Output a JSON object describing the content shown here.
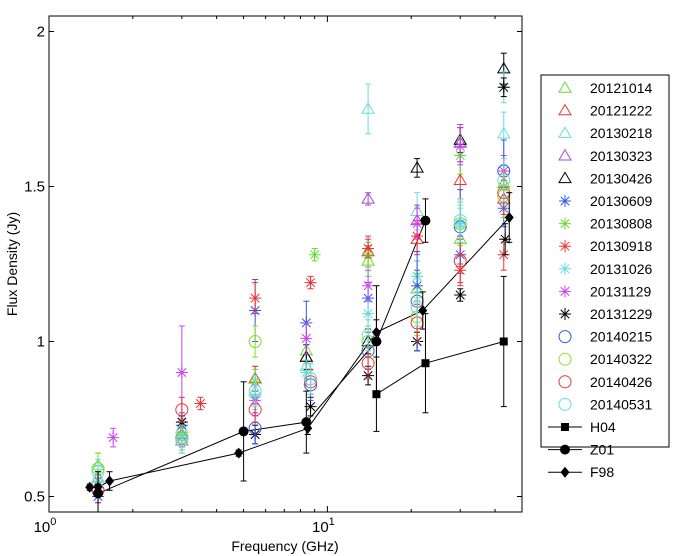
{
  "chart_data": {
    "type": "scatter",
    "xlabel": "Frequency (GHz)",
    "ylabel": "Flux Density (Jy)",
    "xscale": "log",
    "xlim": [
      1,
      50
    ],
    "ylim": [
      0.45,
      2.05
    ],
    "x_ticks": [
      {
        "value": 1,
        "base": "10",
        "exp": "0"
      },
      {
        "value": 10,
        "base": "10",
        "exp": "1"
      }
    ],
    "y_ticks": [
      {
        "value": 0.5,
        "label": "0.5"
      },
      {
        "value": 1,
        "label": "1"
      },
      {
        "value": 1.5,
        "label": "1.5"
      },
      {
        "value": 2,
        "label": "2"
      }
    ],
    "legend_position": "outside-right",
    "series": [
      {
        "name": "20121014",
        "marker": "triangle",
        "color": "#66dd33",
        "connected": false,
        "points": [
          [
            1.5,
            0.6,
            0.04
          ],
          [
            3.0,
            0.72,
            0.04
          ],
          [
            5.5,
            0.88,
            0.04
          ],
          [
            8.4,
            0.97,
            0.04
          ],
          [
            14.0,
            1.26,
            0.05
          ],
          [
            21.0,
            1.17,
            0.05
          ],
          [
            30.0,
            1.33,
            0.05
          ],
          [
            43.0,
            1.51,
            0.06
          ]
        ]
      },
      {
        "name": "20121222",
        "marker": "triangle",
        "color": "#ee3333",
        "connected": false,
        "points": [
          [
            1.5,
            0.56,
            0.04
          ],
          [
            3.0,
            0.7,
            0.04
          ],
          [
            5.5,
            0.88,
            0.04
          ],
          [
            8.4,
            0.95,
            0.04
          ],
          [
            14.0,
            1.29,
            0.05
          ],
          [
            21.0,
            1.33,
            0.05
          ],
          [
            30.0,
            1.52,
            0.06
          ],
          [
            43.0,
            1.46,
            0.06
          ]
        ]
      },
      {
        "name": "20130218",
        "marker": "triangle",
        "color": "#66dddd",
        "connected": false,
        "points": [
          [
            1.5,
            0.56,
            0.04
          ],
          [
            3.0,
            0.72,
            0.04
          ],
          [
            5.5,
            0.84,
            0.04
          ],
          [
            8.4,
            0.92,
            0.04
          ],
          [
            14.0,
            1.75,
            0.08
          ],
          [
            21.0,
            1.42,
            0.06
          ],
          [
            30.0,
            1.38,
            0.06
          ],
          [
            43.0,
            1.67,
            0.07
          ]
        ]
      },
      {
        "name": "20130323",
        "marker": "triangle",
        "color": "#aa44dd",
        "connected": false,
        "points": [
          [
            3.0,
            0.68,
            0.04
          ],
          [
            14.0,
            1.46,
            0.02
          ],
          [
            21.0,
            1.39,
            0.05
          ],
          [
            30.0,
            1.64,
            0.06
          ]
        ]
      },
      {
        "name": "20130426",
        "marker": "triangle",
        "color": "#000000",
        "connected": false,
        "points": [
          [
            8.4,
            0.95,
            0.04
          ],
          [
            14.0,
            1.0,
            0.04
          ],
          [
            21.0,
            1.56,
            0.03
          ],
          [
            30.0,
            1.65,
            0.04
          ],
          [
            43.0,
            1.88,
            0.05
          ]
        ]
      },
      {
        "name": "20130609",
        "marker": "star",
        "color": "#3355ee",
        "connected": false,
        "points": [
          [
            1.5,
            0.5,
            0.07
          ],
          [
            3.0,
            0.73,
            0.04
          ],
          [
            5.5,
            1.1,
            0.1
          ],
          [
            8.4,
            1.06,
            0.07
          ],
          [
            14.0,
            1.14,
            0.05
          ],
          [
            21.0,
            1.18,
            0.05
          ],
          [
            30.0,
            1.28,
            0.06
          ],
          [
            43.0,
            1.43,
            0.06
          ]
        ]
      },
      {
        "name": "20130808",
        "marker": "star",
        "color": "#66dd33",
        "connected": false,
        "points": [
          [
            1.5,
            0.55,
            0.03
          ],
          [
            3.0,
            0.7,
            0.03
          ],
          [
            5.5,
            0.87,
            0.04
          ],
          [
            9.0,
            1.28,
            0.02
          ],
          [
            14.0,
            1.28,
            0.04
          ],
          [
            21.0,
            1.21,
            0.05
          ],
          [
            30.0,
            1.6,
            0.06
          ],
          [
            43.0,
            1.5,
            0.05
          ]
        ]
      },
      {
        "name": "20130918",
        "marker": "star",
        "color": "#ee3333",
        "connected": false,
        "points": [
          [
            1.5,
            0.55,
            0.03
          ],
          [
            3.5,
            0.8,
            0.02
          ],
          [
            5.5,
            1.14,
            0.05
          ],
          [
            8.7,
            1.19,
            0.02
          ],
          [
            14.0,
            1.3,
            0.03
          ],
          [
            21.0,
            1.34,
            0.05
          ],
          [
            30.0,
            1.23,
            0.05
          ],
          [
            43.0,
            1.28,
            0.05
          ]
        ]
      },
      {
        "name": "20131026",
        "marker": "star",
        "color": "#66dddd",
        "connected": false,
        "points": [
          [
            1.5,
            0.55,
            0.03
          ],
          [
            3.0,
            0.69,
            0.04
          ],
          [
            5.5,
            0.82,
            0.04
          ],
          [
            8.4,
            0.9,
            0.04
          ],
          [
            14.0,
            1.09,
            0.04
          ],
          [
            21.0,
            1.21,
            0.05
          ],
          [
            30.0,
            1.38,
            0.05
          ],
          [
            43.0,
            1.82,
            0.05
          ]
        ]
      },
      {
        "name": "20131129",
        "marker": "star",
        "color": "#cc44ee",
        "connected": false,
        "points": [
          [
            1.7,
            0.69,
            0.03
          ],
          [
            3.0,
            0.9,
            0.15
          ],
          [
            5.5,
            0.81,
            0.05
          ],
          [
            8.4,
            1.01,
            0.05
          ],
          [
            14.0,
            1.18,
            0.05
          ],
          [
            21.0,
            1.38,
            0.05
          ],
          [
            30.0,
            1.63,
            0.06
          ],
          [
            43.0,
            1.55,
            0.05
          ]
        ]
      },
      {
        "name": "20131229",
        "marker": "star",
        "color": "#000000",
        "connected": false,
        "points": [
          [
            3.0,
            0.74,
            0.02
          ],
          [
            5.5,
            0.7,
            0.03
          ],
          [
            8.7,
            0.79,
            0.03
          ],
          [
            14.0,
            0.89,
            0.03
          ],
          [
            21.0,
            1.0,
            0.03
          ],
          [
            30.0,
            1.15,
            0.02
          ],
          [
            43.0,
            1.82,
            0.03
          ],
          [
            43.5,
            1.33,
            0.05
          ]
        ]
      },
      {
        "name": "20140215",
        "marker": "circle",
        "color": "#3355ee",
        "connected": false,
        "points": [
          [
            1.5,
            0.52,
            0.04
          ],
          [
            3.0,
            0.69,
            0.04
          ],
          [
            5.5,
            0.72,
            0.05
          ],
          [
            8.7,
            0.86,
            0.05
          ],
          [
            14.0,
            0.97,
            0.06
          ],
          [
            21.0,
            1.13,
            0.16
          ],
          [
            30.0,
            1.37,
            0.12
          ],
          [
            43.0,
            1.55,
            0.1
          ]
        ]
      },
      {
        "name": "20140322",
        "marker": "circle",
        "color": "#88dd22",
        "connected": false,
        "points": [
          [
            1.5,
            0.59,
            0.05
          ],
          [
            3.0,
            0.69,
            0.04
          ],
          [
            5.5,
            1.0,
            0.05
          ],
          [
            8.7,
            0.88,
            0.05
          ],
          [
            14.0,
            1.0,
            0.05
          ],
          [
            21.0,
            1.08,
            0.06
          ],
          [
            30.0,
            1.38,
            0.07
          ],
          [
            43.0,
            1.47,
            0.07
          ]
        ]
      },
      {
        "name": "20140426",
        "marker": "circle",
        "color": "#ee3333",
        "connected": false,
        "points": [
          [
            1.5,
            0.52,
            0.04
          ],
          [
            3.0,
            0.78,
            0.04
          ],
          [
            5.5,
            0.78,
            0.04
          ],
          [
            8.7,
            0.87,
            0.04
          ],
          [
            14.0,
            0.93,
            0.05
          ],
          [
            21.0,
            1.06,
            0.06
          ],
          [
            30.0,
            1.26,
            0.07
          ],
          [
            43.0,
            1.48,
            0.07
          ]
        ]
      },
      {
        "name": "20140531",
        "marker": "circle",
        "color": "#66dddd",
        "connected": false,
        "points": [
          [
            1.5,
            0.58,
            0.04
          ],
          [
            3.0,
            0.68,
            0.04
          ],
          [
            5.5,
            0.84,
            0.05
          ],
          [
            8.7,
            0.88,
            0.05
          ],
          [
            14.0,
            1.02,
            0.05
          ],
          [
            21.0,
            1.11,
            0.06
          ],
          [
            30.0,
            1.39,
            0.07
          ],
          [
            43.0,
            1.52,
            0.07
          ]
        ]
      },
      {
        "name": "H04",
        "marker": "square",
        "color": "#000000",
        "connected": true,
        "points": [
          [
            15.0,
            0.83,
            0.12
          ],
          [
            22.5,
            0.93,
            0.16
          ],
          [
            43.0,
            1.0,
            0.21
          ]
        ]
      },
      {
        "name": "Z01",
        "marker": "filled-circle",
        "color": "#000000",
        "connected": true,
        "points": [
          [
            1.5,
            0.51,
            0.07
          ],
          [
            5.0,
            0.71,
            0.16
          ],
          [
            8.4,
            0.74,
            0.1
          ],
          [
            15.0,
            1.0,
            0.18
          ],
          [
            22.5,
            1.39,
            0.07
          ]
        ]
      },
      {
        "name": "F98",
        "marker": "diamond",
        "color": "#000000",
        "connected": true,
        "points": [
          [
            1.4,
            0.53,
            0.01
          ],
          [
            1.5,
            0.53,
            0.01
          ],
          [
            1.65,
            0.55,
            0.03
          ],
          [
            4.8,
            0.64,
            0.01
          ],
          [
            8.5,
            0.72,
            0.02
          ],
          [
            15.0,
            1.03,
            0.04
          ],
          [
            22.0,
            1.1,
            0.06
          ],
          [
            45.0,
            1.4,
            0.08
          ]
        ]
      }
    ]
  }
}
